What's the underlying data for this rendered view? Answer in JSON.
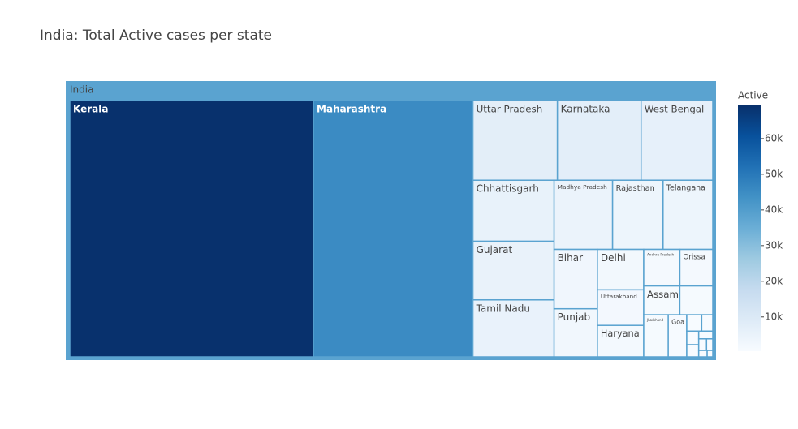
{
  "chart_data": {
    "type": "treemap",
    "title": "India: Total Active cases per state",
    "root": "India",
    "root_color": "#5aa3d0",
    "labels": [
      "Kerala",
      "Maharashtra",
      "Uttar Pradesh",
      "Karnataka",
      "West Bengal",
      "Chhattisgarh",
      "Gujarat",
      "Tamil Nadu",
      "Madhya Pradesh",
      "Rajasthan",
      "Telangana",
      "Bihar",
      "Punjab",
      "Delhi",
      "Uttarakhand",
      "Haryana",
      "Andhra Pradesh",
      "Orissa",
      "Assam",
      null,
      "Jharkhand",
      "Goa",
      null,
      null,
      null,
      null,
      null,
      null,
      null,
      null,
      null
    ],
    "values": [
      69000,
      45200,
      7440,
      7370,
      6310,
      5480,
      5260,
      5110,
      4470,
      3860,
      3800,
      2840,
      2300,
      2070,
      1820,
      1610,
      1460,
      1330,
      1150,
      1050,
      1140,
      860,
      270,
      200,
      180,
      160,
      120,
      100,
      80,
      60,
      40
    ],
    "colorbar": {
      "title": "Active",
      "clim": [
        400,
        69300
      ],
      "ticks": [
        {
          "value": 10000,
          "label": "10k"
        },
        {
          "value": 20000,
          "label": "20k"
        },
        {
          "value": 30000,
          "label": "30k"
        },
        {
          "value": 40000,
          "label": "40k"
        },
        {
          "value": 50000,
          "label": "50k"
        },
        {
          "value": 60000,
          "label": "60k"
        }
      ],
      "colorscale": [
        "#f7fbff",
        "#deebf7",
        "#c6dbef",
        "#9ecae1",
        "#6baed6",
        "#4292c6",
        "#2171b5",
        "#08519c",
        "#08306b"
      ]
    }
  }
}
